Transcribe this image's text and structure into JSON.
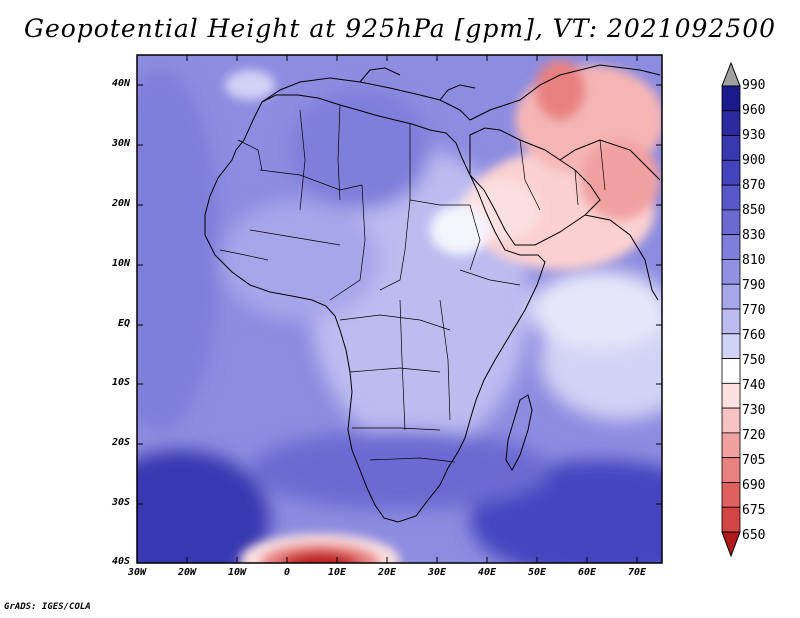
{
  "title": "Geopotential Height at 925hPa [gpm], VT: 2021092500",
  "credit": "GrADS: IGES/COLA",
  "map": {
    "variable": "Geopotential Height",
    "level": "925hPa",
    "units": "gpm",
    "valid_time": "2021092500",
    "lat_range": [
      -40,
      45
    ],
    "lon_range": [
      -30,
      77
    ],
    "lat_ticks": [
      "40N",
      "30N",
      "20N",
      "10N",
      "EQ",
      "10S",
      "20S",
      "30S",
      "40S"
    ],
    "lon_ticks": [
      "30W",
      "20W",
      "10W",
      "0",
      "10E",
      "20E",
      "30E",
      "40E",
      "50E",
      "60E",
      "70E"
    ],
    "lowest_heights_region": "south of Africa near 40S 10E",
    "highest_heights_region": "southern ocean corners"
  },
  "colorbar": {
    "labels": [
      "990",
      "960",
      "930",
      "900",
      "870",
      "850",
      "830",
      "810",
      "790",
      "770",
      "760",
      "750",
      "740",
      "730",
      "720",
      "705",
      "690",
      "675",
      "650"
    ],
    "colors": {
      "top_arrow": "#a0a0a0",
      "bottom_arrow": "#b01a1a",
      "blues": [
        "#1a1a8c",
        "#2a2a9e",
        "#3737b0",
        "#4444bf",
        "#5757c9",
        "#6a6ad2",
        "#7e7edb",
        "#9191e3",
        "#a6a6ea",
        "#bcbcf1",
        "#d2d2f6"
      ],
      "white": "#ffffff",
      "reds": [
        "#fbe0e0",
        "#f7c2c2",
        "#f1a0a0",
        "#e98080",
        "#e06060",
        "#d44444",
        "#c62d2d",
        "#b51d1d"
      ]
    }
  }
}
